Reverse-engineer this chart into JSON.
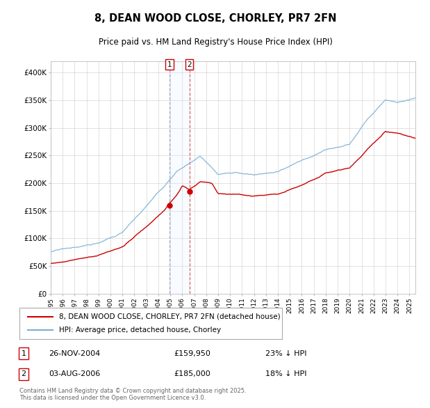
{
  "title": "8, DEAN WOOD CLOSE, CHORLEY, PR7 2FN",
  "subtitle": "Price paid vs. HM Land Registry's House Price Index (HPI)",
  "legend_label_red": "8, DEAN WOOD CLOSE, CHORLEY, PR7 2FN (detached house)",
  "legend_label_blue": "HPI: Average price, detached house, Chorley",
  "transactions": [
    {
      "label": "1",
      "date": "26-NOV-2004",
      "price": 159950,
      "price_str": "£159,950",
      "note": "23% ↓ HPI",
      "x_year": 2004.92
    },
    {
      "label": "2",
      "date": "03-AUG-2006",
      "price": 185000,
      "price_str": "£185,000",
      "note": "18% ↓ HPI",
      "x_year": 2006.59
    }
  ],
  "footnote": "Contains HM Land Registry data © Crown copyright and database right 2025.\nThis data is licensed under the Open Government Licence v3.0.",
  "ylim": [
    0,
    420000
  ],
  "yticks": [
    0,
    50000,
    100000,
    150000,
    200000,
    250000,
    300000,
    350000,
    400000
  ],
  "ytick_labels": [
    "£0",
    "£50K",
    "£100K",
    "£150K",
    "£200K",
    "£250K",
    "£300K",
    "£350K",
    "£400K"
  ],
  "hpi_color": "#7bafd4",
  "price_color": "#cc0000",
  "background_color": "#ffffff",
  "grid_color": "#cccccc",
  "shade_color": "#ddeeff",
  "vline1_color": "#9999bb",
  "vline2_color": "#cc4444",
  "xlim_start": 1995,
  "xlim_end": 2025.5
}
